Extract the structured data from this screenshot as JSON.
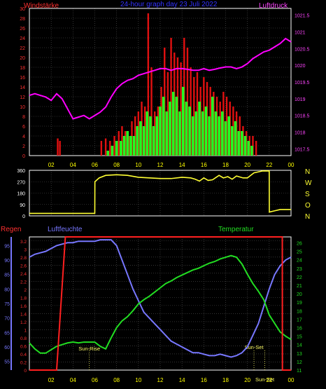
{
  "header": {
    "left_title": "Windstärke",
    "center_title": "24-hour graph day  23 Juli 2022",
    "right_title": "Luftdruck"
  },
  "middle": {
    "compass_labels": [
      "N",
      "W",
      "S",
      "O",
      "N"
    ]
  },
  "bottom_header": {
    "rain_title": "Regen",
    "humidity_title": "Luftfeuchte",
    "temperature_title": "Temperatur"
  },
  "colors": {
    "background": "#000000",
    "grid": "#555555",
    "wind_gust": "#e01010",
    "wind_avg": "#22ff22",
    "pressure": "#ff00ff",
    "direction": "#ffff33",
    "rain": "#ff2020",
    "humidity": "#7777ff",
    "temperature": "#22dd22",
    "axis_text_wind": "#ff3030",
    "axis_text_pressure": "#ff44ff",
    "axis_text_direction": "#ffffff",
    "axis_text_compass": "#ffff33",
    "time_text": "#ffff00",
    "annotation": "#ffff66"
  },
  "chart_data": [
    {
      "type": "bar",
      "title": "24-hour graph day  23 Juli 2022",
      "x_tick_labels": [
        "02",
        "04",
        "06",
        "08",
        "10",
        "12",
        "14",
        "16",
        "18",
        "20",
        "22",
        "00"
      ],
      "x_range_hours": [
        0,
        24
      ],
      "left_axis": {
        "label": "Windstärke",
        "ylim": [
          0,
          30
        ],
        "tick_labels": [
          "0",
          "2",
          "4",
          "6",
          "8",
          "10",
          "12",
          "14",
          "16",
          "18",
          "20",
          "22",
          "24",
          "26",
          "28",
          "30"
        ]
      },
      "right_axis": {
        "label": "Luftdruck",
        "ylim": [
          1017.3,
          1021.7
        ],
        "tick_labels": [
          "1017.5",
          "1018",
          "1018.5",
          "1019",
          "1019.5",
          "1020",
          "1020.5",
          "1021",
          "1021.5"
        ]
      },
      "series": [
        {
          "type": "line",
          "name": "Luftdruck",
          "axis": "right",
          "x_hours": [
            0,
            0.5,
            1,
            1.5,
            2,
            2.5,
            3,
            3.5,
            4,
            4.5,
            5,
            5.5,
            6,
            6.5,
            7,
            7.5,
            8,
            8.5,
            9,
            9.5,
            10,
            10.5,
            11,
            11.5,
            12,
            12.5,
            13,
            13.5,
            14,
            14.5,
            15,
            15.5,
            16,
            16.5,
            17,
            17.5,
            18,
            18.5,
            19,
            19.5,
            20,
            20.5,
            21,
            21.5,
            22,
            22.5,
            23,
            23.5,
            24
          ],
          "values": [
            1019.1,
            1019.15,
            1019.1,
            1019.05,
            1018.95,
            1019.15,
            1019.0,
            1018.7,
            1018.4,
            1018.45,
            1018.5,
            1018.4,
            1018.5,
            1018.6,
            1018.75,
            1019.05,
            1019.3,
            1019.45,
            1019.55,
            1019.6,
            1019.7,
            1019.75,
            1019.8,
            1019.85,
            1019.9,
            1019.9,
            1019.85,
            1019.9,
            1019.9,
            1019.88,
            1019.85,
            1019.85,
            1019.9,
            1019.85,
            1019.88,
            1019.92,
            1019.95,
            1019.95,
            1019.9,
            1019.95,
            1020.05,
            1020.2,
            1020.3,
            1020.4,
            1020.45,
            1020.55,
            1020.65,
            1020.8,
            1020.7
          ]
        },
        {
          "type": "bar",
          "name": "Böen",
          "axis": "left",
          "x_hours": [
            2.6,
            2.8,
            6.6,
            7.0,
            7.4,
            7.8,
            8.2,
            8.5,
            8.8,
            9.1,
            9.4,
            9.7,
            10.0,
            10.3,
            10.6,
            10.9,
            11.2,
            11.5,
            11.8,
            12.1,
            12.4,
            12.7,
            13.0,
            13.3,
            13.6,
            13.9,
            14.2,
            14.5,
            14.8,
            15.1,
            15.4,
            15.7,
            16.0,
            16.3,
            16.6,
            16.9,
            17.2,
            17.5,
            17.8,
            18.1,
            18.4,
            18.7,
            19.0,
            19.3,
            19.6,
            19.9,
            20.2,
            20.5,
            20.8
          ],
          "values": [
            3.5,
            3,
            3,
            3.5,
            3,
            4,
            5,
            6,
            5,
            4,
            7,
            8,
            9,
            11,
            10,
            29,
            18,
            9,
            10,
            14,
            22,
            17,
            24,
            21,
            20,
            19,
            24,
            22,
            18,
            16,
            17,
            14,
            16,
            15,
            14,
            13,
            12,
            11,
            13,
            12,
            11,
            10,
            9,
            8,
            6,
            5,
            4,
            4,
            3
          ]
        },
        {
          "type": "bar",
          "name": "Wind",
          "axis": "left",
          "x_hours": [
            7.2,
            7.6,
            8.0,
            8.4,
            8.7,
            9.0,
            9.3,
            9.6,
            9.9,
            10.2,
            10.5,
            10.8,
            11.1,
            11.4,
            11.7,
            12.0,
            12.3,
            12.6,
            12.9,
            13.2,
            13.5,
            13.8,
            14.1,
            14.4,
            14.7,
            15.0,
            15.3,
            15.6,
            15.9,
            16.2,
            16.5,
            16.8,
            17.1,
            17.4,
            17.7,
            18.0,
            18.3,
            18.6,
            18.9,
            19.2,
            19.5,
            19.8,
            20.1,
            20.4
          ],
          "values": [
            1,
            2,
            3,
            3,
            4,
            5,
            4,
            4,
            6,
            7,
            6,
            9,
            8,
            6,
            8,
            10,
            12,
            9,
            11,
            13,
            12,
            9,
            14,
            11,
            10,
            8,
            9,
            11,
            9,
            10,
            8,
            12,
            9,
            8,
            9,
            7,
            8,
            6,
            7,
            5,
            5,
            4,
            3,
            2
          ]
        }
      ]
    },
    {
      "type": "line",
      "name": "Windrichtung",
      "x_range_hours": [
        0,
        24
      ],
      "left_axis": {
        "ylim": [
          0,
          360
        ],
        "tick_labels": [
          "0",
          "90",
          "180",
          "270",
          "360"
        ]
      },
      "right_labels": [
        "N",
        "W",
        "S",
        "O",
        "N"
      ],
      "series": [
        {
          "name": "Windrichtung",
          "x_hours": [
            0,
            6.0,
            6.01,
            6.4,
            7.0,
            8.0,
            9.0,
            10.0,
            11.0,
            12.0,
            13.0,
            14.0,
            14.8,
            15.2,
            15.6,
            16.0,
            16.4,
            16.8,
            17.4,
            17.8,
            18.2,
            18.6,
            19.0,
            19.6,
            20.0,
            20.6,
            21.4,
            21.8,
            22.0,
            22.01,
            22.5,
            23.0,
            24.0
          ],
          "values": [
            20,
            20,
            270,
            300,
            320,
            325,
            320,
            305,
            300,
            295,
            295,
            305,
            300,
            290,
            275,
            300,
            280,
            285,
            320,
            300,
            310,
            290,
            315,
            300,
            300,
            340,
            355,
            355,
            355,
            30,
            40,
            50,
            50
          ]
        }
      ]
    },
    {
      "type": "line",
      "x_tick_labels": [
        "02",
        "04",
        "06",
        "08",
        "10",
        "12",
        "14",
        "16",
        "18",
        "20",
        "22",
        "00"
      ],
      "x_range_hours": [
        0,
        24
      ],
      "rain_axis": {
        "label": "Regen",
        "ylim": [
          0,
          3.3
        ],
        "tick_labels": [
          "0",
          "0.2",
          "0.4",
          "0.6",
          "0.8",
          "1",
          "1.2",
          "1.4",
          "1.6",
          "1.8",
          "2",
          "2.2",
          "2.4",
          "2.6",
          "2.8",
          "3",
          "3.2"
        ]
      },
      "humidity_axis": {
        "label": "Luftfeuchte",
        "ylim": [
          52,
          98
        ],
        "tick_labels": [
          "55",
          "60",
          "65",
          "70",
          "75",
          "80",
          "85",
          "90",
          "95"
        ]
      },
      "temperature_axis": {
        "label": "Temperatur",
        "ylim": [
          11,
          26.7
        ],
        "tick_labels": [
          "11",
          "12",
          "13",
          "14",
          "15",
          "16",
          "17",
          "18",
          "19",
          "20",
          "21",
          "22",
          "23",
          "24",
          "25",
          "26"
        ]
      },
      "annotations": [
        {
          "text": "Sun-Rise",
          "x_hour": 5.5
        },
        {
          "text": "Sun-Set",
          "x_hour": 20.6
        },
        {
          "text": "Sun-Set",
          "x_hour": 21.6
        }
      ],
      "series": [
        {
          "name": "Regen",
          "axis": "rain",
          "x_hours": [
            0,
            2.5,
            3.3,
            3.4,
            23.2,
            23.21,
            24
          ],
          "values": [
            0,
            0,
            3.3,
            3.3,
            3.3,
            0,
            0
          ]
        },
        {
          "name": "Luftfeuchte",
          "axis": "humidity",
          "x_hours": [
            0,
            0.5,
            1,
            1.5,
            2,
            2.5,
            3,
            3.5,
            4,
            4.5,
            5,
            5.5,
            6,
            6.5,
            7,
            7.5,
            8,
            8.5,
            9,
            9.5,
            10,
            10.5,
            11,
            11.5,
            12,
            12.5,
            13,
            13.5,
            14,
            14.5,
            15,
            15.5,
            16,
            16.5,
            17,
            17.5,
            18,
            18.5,
            19,
            19.5,
            20,
            20.5,
            21,
            21.5,
            22,
            22.5,
            23,
            23.5,
            24
          ],
          "values": [
            91,
            92,
            92.5,
            93,
            94,
            95,
            95.5,
            96,
            96,
            96.5,
            96.5,
            96.5,
            96.5,
            97,
            97,
            97,
            95,
            90,
            85,
            80,
            76,
            72,
            70,
            68,
            66,
            64,
            62,
            61,
            60,
            59,
            58,
            58,
            57.5,
            57,
            57,
            57.5,
            57,
            56.5,
            57,
            58,
            60,
            64,
            68,
            74,
            80,
            85,
            88,
            90,
            91
          ]
        },
        {
          "name": "Temperatur",
          "axis": "temperature",
          "x_hours": [
            0,
            0.5,
            1,
            1.5,
            2,
            2.5,
            3,
            3.5,
            4,
            4.5,
            5,
            5.5,
            6,
            6.5,
            7,
            7.5,
            8,
            8.5,
            9,
            9.5,
            10,
            10.5,
            11,
            11.5,
            12,
            12.5,
            13,
            13.5,
            14,
            14.5,
            15,
            15.5,
            16,
            16.5,
            17,
            17.5,
            18,
            18.5,
            19,
            19.5,
            20,
            20.5,
            21,
            21.5,
            22,
            22.5,
            23,
            23.5,
            24
          ],
          "values": [
            14.2,
            13.5,
            13.0,
            13.0,
            13.4,
            13.8,
            14.0,
            14.2,
            14.3,
            14.2,
            14.3,
            14.3,
            14.3,
            13.8,
            13.5,
            14.8,
            16.0,
            16.8,
            17.3,
            18.0,
            18.8,
            19.3,
            19.7,
            20.2,
            20.7,
            21.2,
            21.5,
            21.9,
            22.2,
            22.5,
            22.8,
            23.0,
            23.3,
            23.6,
            23.8,
            24.1,
            24.3,
            24.5,
            24.3,
            23.5,
            22.3,
            21.2,
            20.3,
            19.3,
            17.5,
            16.5,
            15.5,
            15.0,
            14.6
          ]
        }
      ]
    }
  ]
}
